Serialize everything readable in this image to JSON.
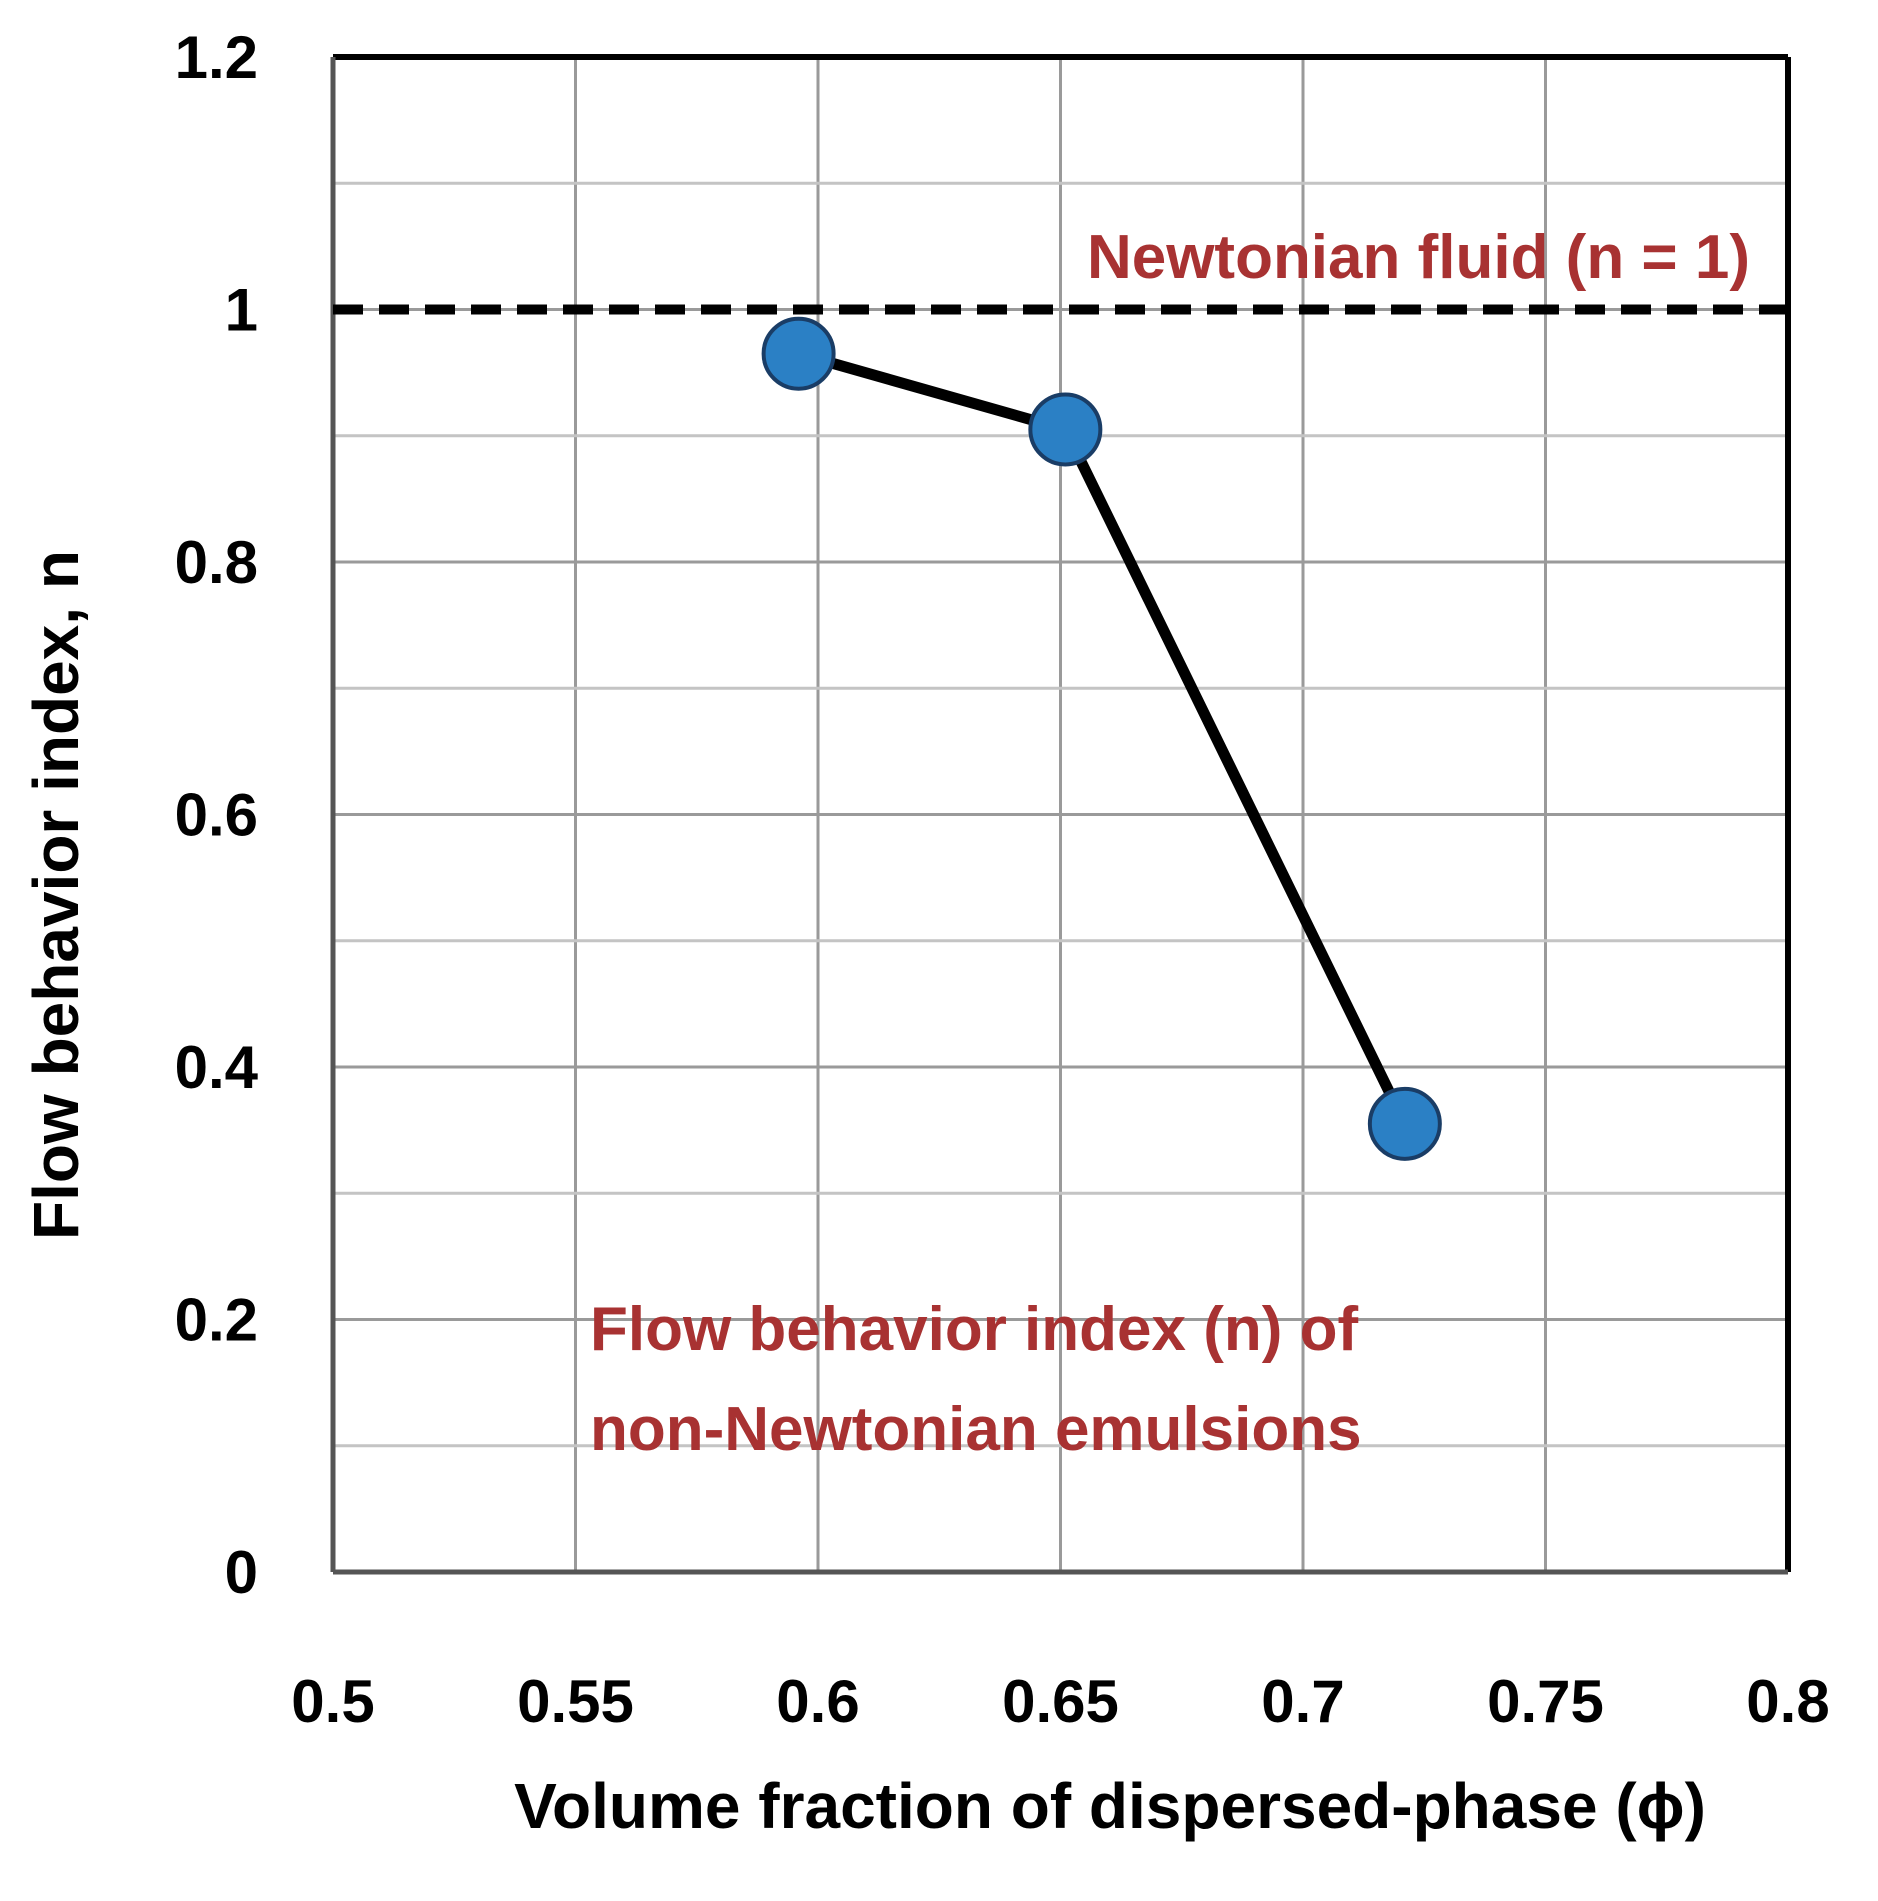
{
  "chart_data": {
    "type": "line",
    "title": "",
    "xlabel": "Volume fraction of dispersed-phase (ϕ)",
    "ylabel": "Flow behavior index, n",
    "xlim": [
      0.5,
      0.8
    ],
    "ylim": [
      0,
      1.2
    ],
    "x_ticks": [
      0.5,
      0.55,
      0.6,
      0.65,
      0.7,
      0.75,
      0.8
    ],
    "x_tick_labels": [
      "0.5",
      "0.55",
      "0.6",
      "0.65",
      "0.7",
      "0.75",
      "0.8"
    ],
    "y_ticks": [
      0,
      0.2,
      0.4,
      0.6,
      0.8,
      1,
      1.2
    ],
    "y_tick_labels": [
      "0",
      "0.2",
      "0.4",
      "0.6",
      "0.8",
      "1",
      "1.2"
    ],
    "grid": true,
    "grid_minor_y": [
      0.1,
      0.3,
      0.5,
      0.7,
      0.9,
      1.1
    ],
    "series": [
      {
        "name": "Flow behavior index (n) of non-Newtonian emulsions",
        "x": [
          0.596,
          0.651,
          0.721
        ],
        "y": [
          0.965,
          0.905,
          0.355
        ],
        "marker_color": "#2b80c5",
        "marker_edge_color": "#1a3d66",
        "line_color": "#000000"
      }
    ],
    "reference_line": {
      "y": 1,
      "style": "dashed",
      "color": "#000000",
      "label": "Newtonian fluid (n = 1)"
    },
    "annotations": [
      {
        "id": "newtonian",
        "text": "Newtonian fluid (n = 1)",
        "color": "#a83232"
      },
      {
        "id": "series_line1",
        "text": "Flow behavior index (n) of",
        "color": "#a83232"
      },
      {
        "id": "series_line2",
        "text": "non-Newtonian emulsions",
        "color": "#a83232"
      }
    ]
  }
}
